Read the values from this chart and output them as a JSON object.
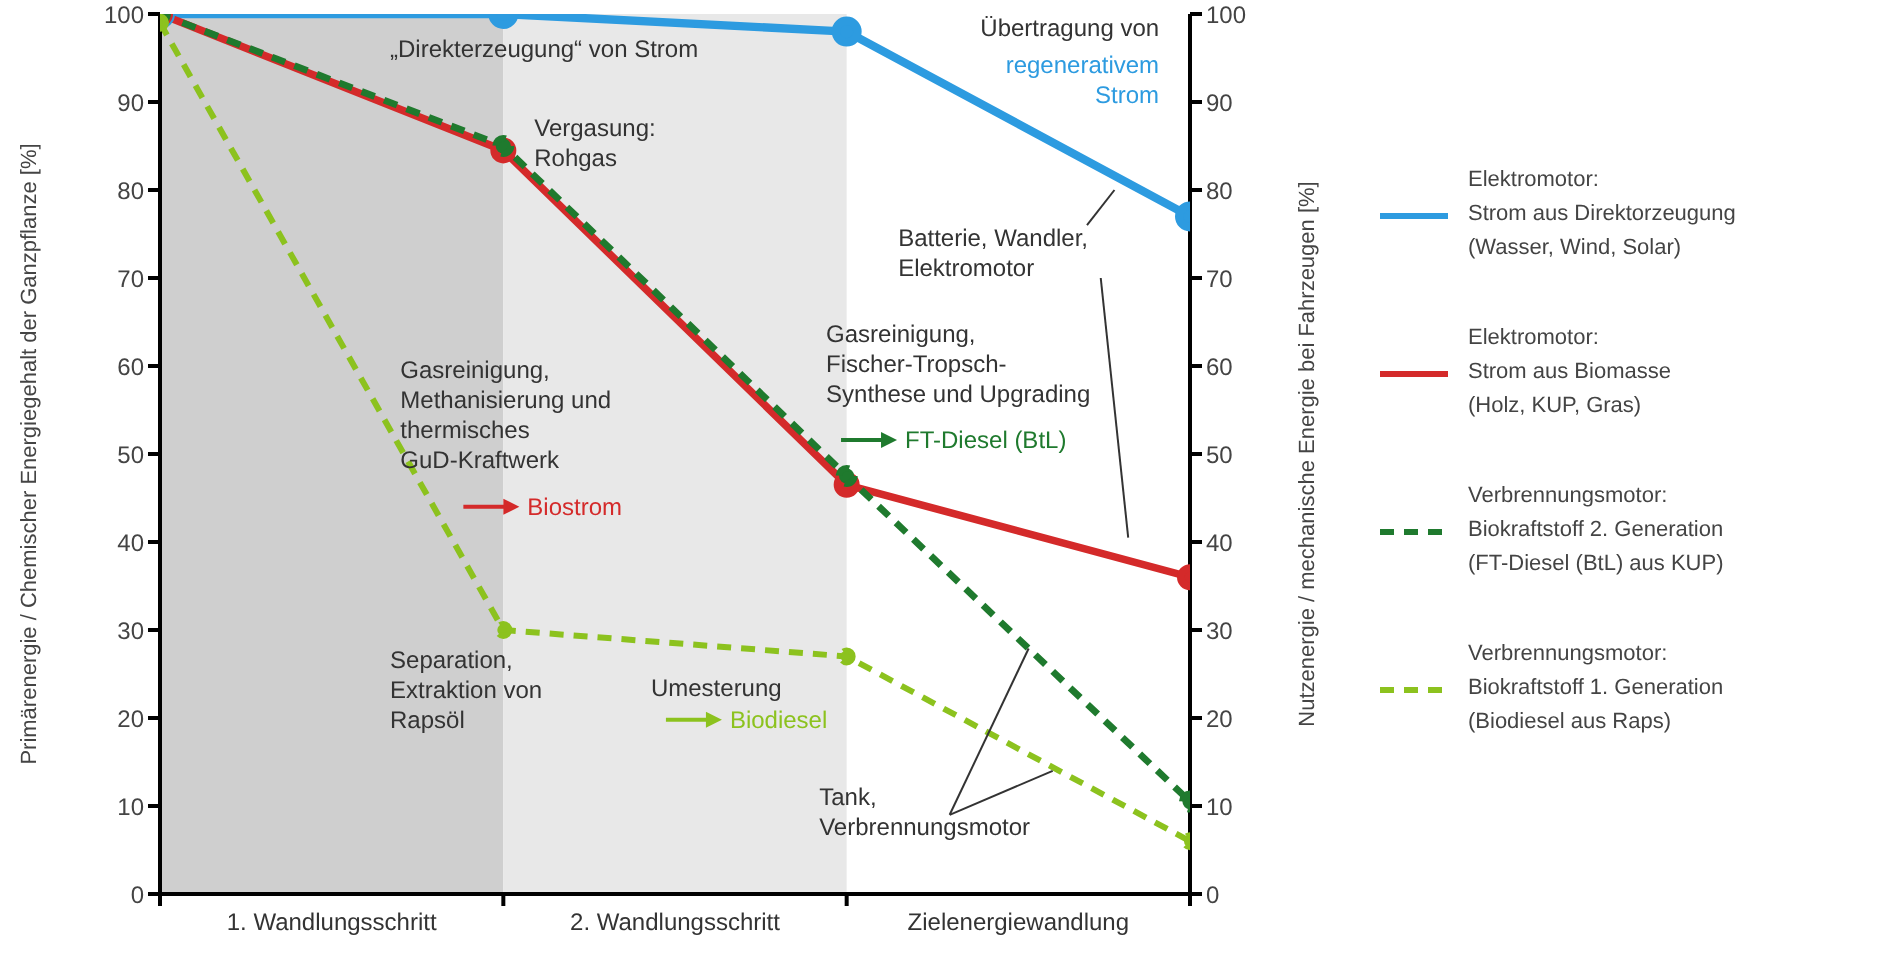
{
  "chart_data": {
    "type": "line",
    "ylabel": "Primärenergie / Chemischer Energiegehalt der Ganzpflanze [%]",
    "y2label": "Nutzenergie / mechanische Energie bei Fahrzeugen [%]",
    "x": [
      0,
      1,
      2,
      3
    ],
    "xlim": [
      0,
      3
    ],
    "xticks": [
      {
        "value": 0,
        "label": null
      },
      {
        "value": 0.5,
        "label": "1. Wandlungsschritt"
      },
      {
        "value": 1,
        "label": null
      },
      {
        "value": 1.5,
        "label": "2. Wandlungsschritt"
      },
      {
        "value": 2,
        "label": null
      },
      {
        "value": 2.5,
        "label": "Zielenergiewandlung"
      },
      {
        "value": 3,
        "label": null
      }
    ],
    "ylim": [
      0,
      100
    ],
    "yticks": [
      0,
      10,
      20,
      30,
      40,
      50,
      60,
      70,
      80,
      90,
      100
    ],
    "y2lim": [
      0,
      100
    ],
    "y2ticks": [
      0,
      10,
      20,
      30,
      40,
      50,
      60,
      70,
      80,
      90,
      100
    ],
    "series": [
      {
        "name": "Elektromotor:\nStrom aus Direktorzeugung\n(Wasser, Wind, Solar)",
        "color": "#2d9be0",
        "line_style": "solid",
        "values": [
          100,
          100,
          98,
          77
        ]
      },
      {
        "name": "Elektromotor:\nStrom aus Biomasse\n(Holz, KUP, Gras)",
        "color": "#d42a2a",
        "line_style": "solid",
        "values": [
          100,
          84.5,
          46.5,
          36
        ]
      },
      {
        "name": "Verbrennungsmotor:\nBiokraftstoff 2. Generation\n(FT-Diesel (BtL) aus KUP)",
        "color": "#1f7a2e",
        "line_style": "dashed",
        "values": [
          100,
          85,
          47.5,
          10.5
        ]
      },
      {
        "name": "Verbrennungsmotor:\nBiokraftstoff 1. Generation\n(Biodiesel aus Raps)",
        "color": "#8cc21e",
        "line_style": "dashed",
        "values": [
          99,
          30,
          27,
          6
        ]
      }
    ],
    "bands": [
      {
        "axis": "x",
        "from": 0,
        "to": 1,
        "color": "#cfcfcf"
      },
      {
        "axis": "x",
        "from": 1,
        "to": 2,
        "color": "#e8e8e8"
      }
    ],
    "marker": "circle",
    "legend": "right",
    "annotations": [
      "„Direkterzeugung“ von Strom",
      "Übertragung von",
      "regenerativem\nStrom",
      "Vergasung:\nRohgas",
      "Batterie, Wandler,\nElektromotor",
      "Gasreinigung,\nMethanisierung und\nthermisches\nGuD-Kraftwerk",
      "Biostrom",
      "Gasreinigung,\nFischer-Tropsch-\nSynthese und Upgrading",
      "FT-Diesel (BtL)",
      "Separation,\nExtraktion von\nRapsöl",
      "Umesterung",
      "Biodiesel",
      {
        "text": "Tank,\nVerbrennungsmotor",
        "x": 2.53,
        "y": 27.9
      }
    ]
  }
}
